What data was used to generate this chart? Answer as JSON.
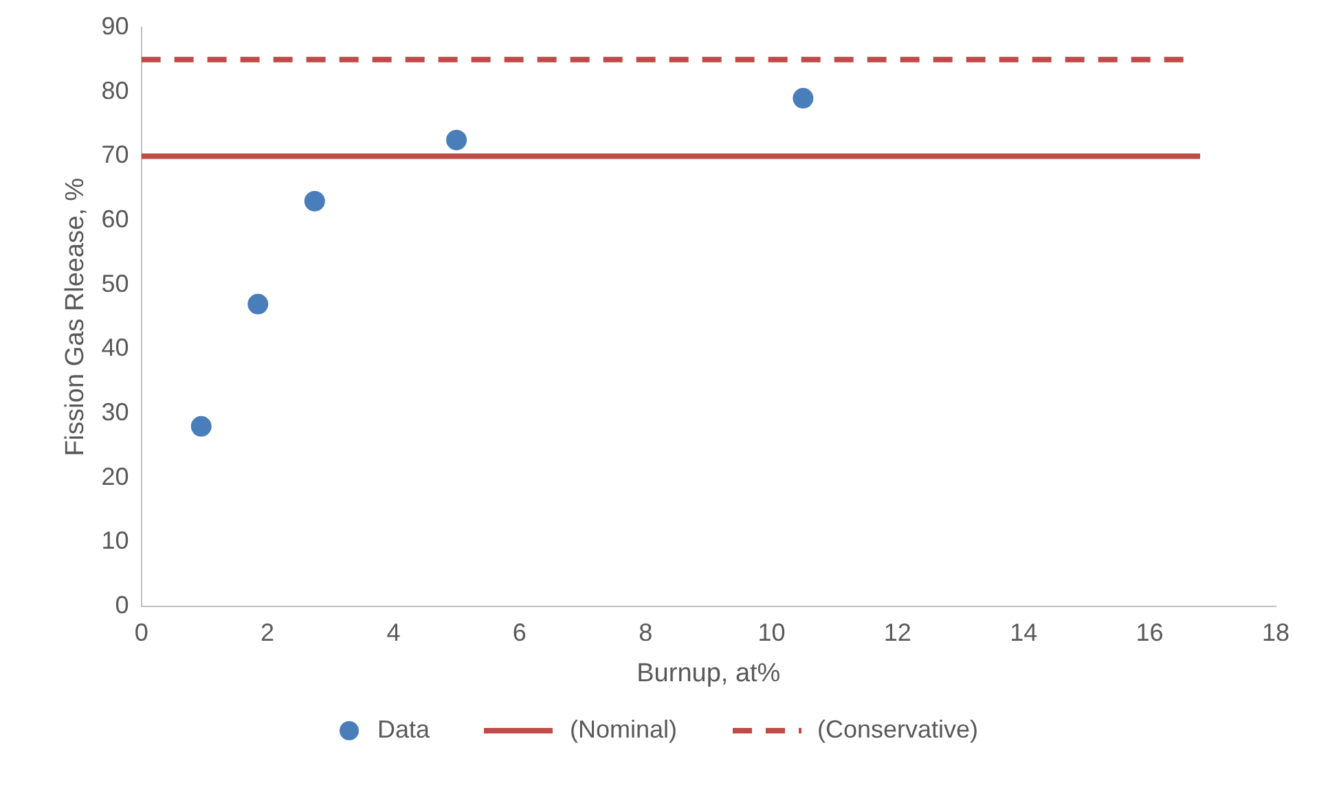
{
  "chart_data": {
    "type": "scatter",
    "xlabel": "Burnup, at%",
    "ylabel": "Fission Gas Rleease, %",
    "xlim": [
      0,
      18
    ],
    "xticks": [
      0,
      2,
      4,
      6,
      8,
      10,
      12,
      14,
      16,
      18
    ],
    "ylim": [
      0,
      90
    ],
    "yticks": [
      0,
      10,
      20,
      30,
      40,
      50,
      60,
      70,
      80,
      90
    ],
    "legend": "bottom",
    "series": [
      {
        "name": "Data",
        "type": "scatter",
        "color": "#4a7ebb",
        "marker": "circle",
        "x": [
          0.95,
          1.85,
          2.75,
          5,
          10.5
        ],
        "values": [
          28,
          47,
          63,
          72.5,
          79
        ]
      },
      {
        "name": "(Nominal)",
        "type": "line",
        "color": "#be4b48",
        "line_style": "solid",
        "x": [
          0,
          16.8
        ],
        "values": [
          70,
          70
        ]
      },
      {
        "name": "(Conservative)",
        "type": "line",
        "color": "#be4b48",
        "line_style": "dashed",
        "x": [
          0,
          16.6
        ],
        "values": [
          85,
          85
        ]
      }
    ]
  }
}
